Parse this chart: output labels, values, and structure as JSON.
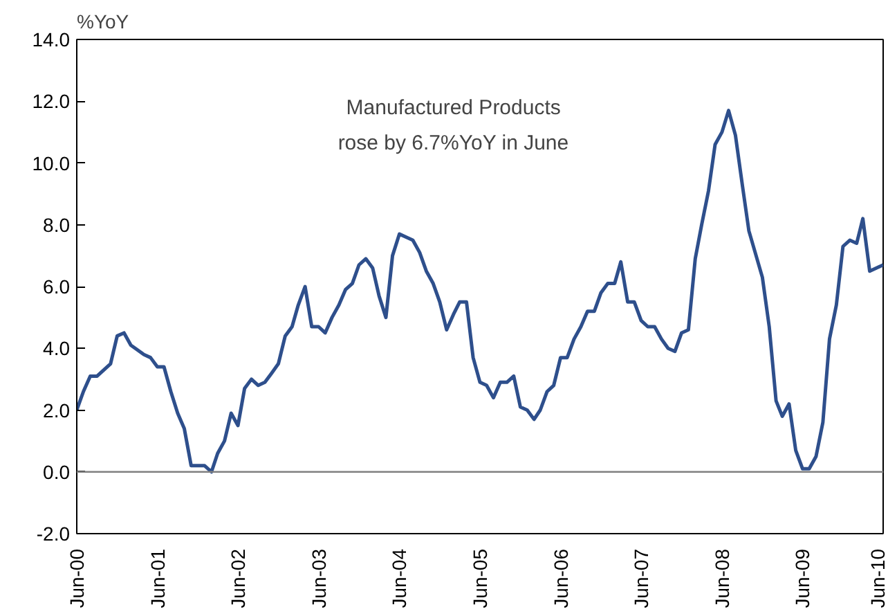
{
  "chart_data": {
    "type": "line",
    "ylabel": "%YoY",
    "annotations": [
      "Manufactured Products\nrose by 6.7%YoY in June"
    ],
    "x": [
      "2000-06",
      "2000-07",
      "2000-08",
      "2000-09",
      "2000-11",
      "2000-12",
      "2001-01",
      "2001-02",
      "2001-04",
      "2001-05",
      "2001-06",
      "2001-07",
      "2001-08",
      "2001-09",
      "2001-10",
      "2001-11",
      "2001-12",
      "2002-01",
      "2002-02",
      "2002-03",
      "2002-04",
      "2002-05",
      "2002-06",
      "2002-07",
      "2002-08",
      "2002-09",
      "2002-10",
      "2002-11",
      "2002-12",
      "2003-01",
      "2003-02",
      "2003-03",
      "2003-04",
      "2003-05",
      "2003-06",
      "2003-07",
      "2003-08",
      "2003-09",
      "2003-10",
      "2003-11",
      "2003-12",
      "2004-01",
      "2004-02",
      "2004-03",
      "2004-04",
      "2004-05",
      "2004-06",
      "2004-07",
      "2004-08",
      "2004-09",
      "2004-10",
      "2004-11",
      "2004-12",
      "2005-01",
      "2005-02",
      "2005-03",
      "2005-04",
      "2005-05",
      "2005-06",
      "2005-07",
      "2005-08",
      "2005-09",
      "2005-10",
      "2005-11",
      "2005-12",
      "2006-01",
      "2006-02",
      "2006-03",
      "2006-04",
      "2006-05",
      "2006-06",
      "2006-07",
      "2006-08",
      "2006-09",
      "2006-10",
      "2006-11",
      "2006-12",
      "2007-01",
      "2007-02",
      "2007-03",
      "2007-04",
      "2007-05",
      "2007-06",
      "2007-07",
      "2007-08",
      "2007-09",
      "2007-10",
      "2007-11",
      "2007-12",
      "2008-01",
      "2008-02",
      "2008-03",
      "2008-04",
      "2008-05",
      "2008-06",
      "2008-07",
      "2008-08",
      "2008-09",
      "2008-10",
      "2008-12",
      "2009-01",
      "2009-02",
      "2009-03",
      "2009-04",
      "2009-05",
      "2009-06",
      "2009-07",
      "2009-08",
      "2009-09",
      "2009-10",
      "2009-11",
      "2009-12",
      "2010-01",
      "2010-02",
      "2010-03",
      "2010-04",
      "2010-06"
    ],
    "series": [
      {
        "color": "#2e4f8c",
        "values": [
          2.0,
          2.6,
          3.1,
          3.1,
          3.5,
          4.4,
          4.5,
          4.1,
          3.8,
          3.7,
          3.4,
          3.4,
          2.6,
          1.9,
          1.4,
          0.2,
          0.2,
          0.2,
          0.0,
          0.6,
          1.0,
          1.9,
          1.5,
          2.7,
          3.0,
          2.8,
          2.9,
          3.2,
          3.5,
          4.4,
          4.7,
          5.4,
          6.0,
          4.7,
          4.7,
          4.5,
          5.0,
          5.4,
          5.9,
          6.1,
          6.7,
          6.9,
          6.6,
          5.7,
          5.0,
          7.0,
          7.7,
          7.6,
          7.5,
          7.1,
          6.5,
          6.1,
          5.5,
          4.6,
          5.1,
          5.5,
          5.5,
          3.7,
          2.9,
          2.8,
          2.4,
          2.9,
          2.9,
          3.1,
          2.1,
          2.0,
          1.7,
          2.0,
          2.6,
          2.8,
          3.7,
          3.7,
          4.3,
          4.7,
          5.2,
          5.2,
          5.8,
          6.1,
          6.1,
          6.8,
          5.5,
          5.5,
          4.9,
          4.7,
          4.7,
          4.3,
          4.0,
          3.9,
          4.5,
          4.6,
          6.9,
          8.0,
          9.1,
          10.6,
          11.0,
          11.7,
          10.9,
          9.3,
          7.8,
          6.3,
          4.7,
          2.3,
          1.8,
          2.2,
          0.7,
          0.1,
          0.1,
          0.5,
          1.6,
          4.3,
          5.4,
          7.3,
          7.5,
          7.4,
          8.2,
          6.5,
          6.7
        ]
      }
    ],
    "xlim": [
      "2000-06",
      "2010-06"
    ],
    "xticks": [
      {
        "value": "2000-06",
        "label": "Jun-00"
      },
      {
        "value": "2001-06",
        "label": "Jun-01"
      },
      {
        "value": "2002-06",
        "label": "Jun-02"
      },
      {
        "value": "2003-06",
        "label": "Jun-03"
      },
      {
        "value": "2004-06",
        "label": "Jun-04"
      },
      {
        "value": "2005-06",
        "label": "Jun-05"
      },
      {
        "value": "2006-06",
        "label": "Jun-06"
      },
      {
        "value": "2007-06",
        "label": "Jun-07"
      },
      {
        "value": "2008-06",
        "label": "Jun-08"
      },
      {
        "value": "2009-06",
        "label": "Jun-09"
      },
      {
        "value": "2010-06",
        "label": "Jun-10"
      }
    ],
    "ylim": [
      -2,
      14
    ],
    "yticks": [
      {
        "value": -2,
        "label": "-2.0"
      },
      {
        "value": 0,
        "label": "0.0"
      },
      {
        "value": 2,
        "label": "2.0"
      },
      {
        "value": 4,
        "label": "4.0"
      },
      {
        "value": 6,
        "label": "6.0"
      },
      {
        "value": 8,
        "label": "8.0"
      },
      {
        "value": 10,
        "label": "10.0"
      },
      {
        "value": 12,
        "label": "12.0"
      },
      {
        "value": 14,
        "label": "14.0"
      }
    ],
    "ref_lines": [
      {
        "axis": "y",
        "value": 0,
        "color": "#808080"
      }
    ],
    "grid": false,
    "marker": "none",
    "line_style": "solid"
  }
}
